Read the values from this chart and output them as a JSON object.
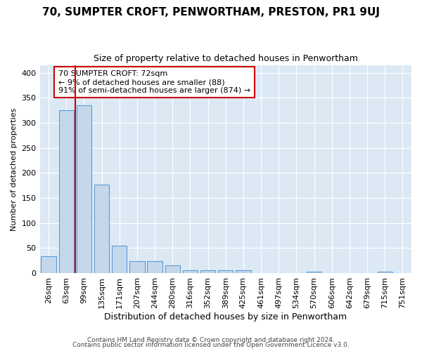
{
  "title1": "70, SUMPTER CROFT, PENWORTHAM, PRESTON, PR1 9UJ",
  "title2": "Size of property relative to detached houses in Penwortham",
  "xlabel": "Distribution of detached houses by size in Penwortham",
  "ylabel": "Number of detached properties",
  "categories": [
    "26sqm",
    "63sqm",
    "99sqm",
    "135sqm",
    "171sqm",
    "207sqm",
    "244sqm",
    "280sqm",
    "316sqm",
    "352sqm",
    "389sqm",
    "425sqm",
    "461sqm",
    "497sqm",
    "534sqm",
    "570sqm",
    "606sqm",
    "642sqm",
    "679sqm",
    "715sqm",
    "751sqm"
  ],
  "values": [
    33,
    325,
    335,
    177,
    55,
    24,
    24,
    15,
    5,
    5,
    5,
    5,
    0,
    0,
    0,
    3,
    0,
    0,
    0,
    3,
    0
  ],
  "bar_color": "#c5d8eb",
  "bar_edge_color": "#5b9bd5",
  "vline_x": 1.5,
  "vline_color": "#cc0000",
  "annotation_text": "70 SUMPTER CROFT: 72sqm\n← 9% of detached houses are smaller (88)\n91% of semi-detached houses are larger (874) →",
  "annotation_box_facecolor": "#ffffff",
  "annotation_box_edgecolor": "#cc0000",
  "ylim": [
    0,
    415
  ],
  "yticks": [
    0,
    50,
    100,
    150,
    200,
    250,
    300,
    350,
    400
  ],
  "footer1": "Contains HM Land Registry data © Crown copyright and database right 2024.",
  "footer2": "Contains public sector information licensed under the Open Government Licence v3.0.",
  "bg_color": "#ffffff",
  "plot_bg_color": "#dce9f5",
  "title1_fontsize": 11,
  "title2_fontsize": 9,
  "xlabel_fontsize": 9,
  "ylabel_fontsize": 8,
  "tick_fontsize": 8,
  "footer_fontsize": 6.5
}
